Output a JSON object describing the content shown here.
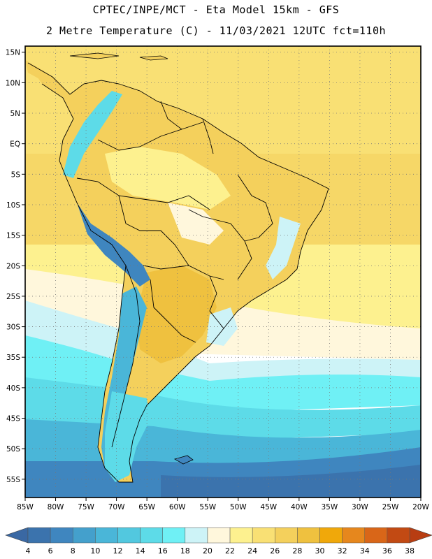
{
  "header": {
    "title_line1": "CPTEC/INPE/MCT -  Eta Model 15km - GFS",
    "title_line2": "2 Metre Temperature (C) - 11/03/2021 12UTC fct=110h"
  },
  "axes": {
    "lat_labels": [
      "15N",
      "10N",
      "5N",
      "EQ",
      "5S",
      "10S",
      "15S",
      "20S",
      "25S",
      "30S",
      "35S",
      "40S",
      "45S",
      "50S",
      "55S"
    ],
    "lat_values": [
      15,
      10,
      5,
      0,
      -5,
      -10,
      -15,
      -20,
      -25,
      -30,
      -35,
      -40,
      -45,
      -50,
      -55
    ],
    "lon_labels": [
      "85W",
      "80W",
      "75W",
      "70W",
      "65W",
      "60W",
      "55W",
      "50W",
      "45W",
      "40W",
      "35W",
      "30W",
      "25W",
      "20W"
    ],
    "lon_values": [
      -85,
      -80,
      -75,
      -70,
      -65,
      -60,
      -55,
      -50,
      -45,
      -40,
      -35,
      -30,
      -25,
      -20
    ],
    "lat_range": [
      -58,
      16
    ],
    "lon_range": [
      -85,
      -20
    ],
    "grid": true
  },
  "colorbar": {
    "ticks": [
      "4",
      "6",
      "8",
      "10",
      "12",
      "14",
      "16",
      "18",
      "20",
      "22",
      "24",
      "26",
      "28",
      "30",
      "32",
      "34",
      "36",
      "38"
    ],
    "colors": [
      "#3b73ad",
      "#3f86bf",
      "#44a0cc",
      "#4ab6d8",
      "#52c8df",
      "#5ddbe8",
      "#6ff0f5",
      "#cdf3f7",
      "#fff7dc",
      "#fdf18f",
      "#f9e074",
      "#f4d05c",
      "#efc13f",
      "#f0a80a",
      "#e6871d",
      "#d96618",
      "#c24a13"
    ]
  },
  "regions": {
    "south_atlantic_cold": "#3b73ad",
    "ocean_mid": "#4ab6d8",
    "ocean_cool": "#5ddbe8",
    "ocean_light": "#6ff0f5",
    "ocean_pale": "#cdf3f7",
    "tropics_ocean": "#f9e074",
    "warm_land": "#f4d05c",
    "hot_land": "#efc13f",
    "pale_land": "#fff7dc"
  }
}
